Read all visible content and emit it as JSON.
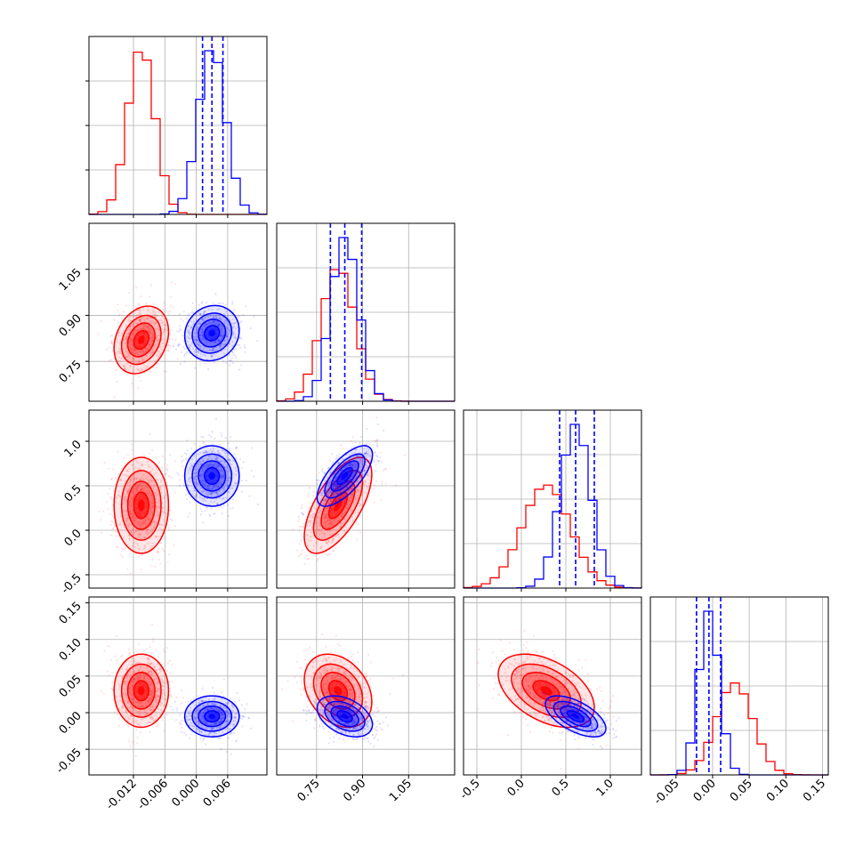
{
  "chart_data": {
    "type": "corner",
    "grid": true,
    "colors": {
      "blue": "#0000ff",
      "red": "#ff0000",
      "dashed_quantiles": "#0000ff"
    },
    "series": [
      {
        "color": "#ff0000",
        "mean": [
          -0.0105,
          0.82,
          0.28,
          0.03
        ],
        "sd": [
          0.0026,
          0.055,
          0.27,
          0.025
        ],
        "corr": [
          [
            0,
            1,
            0.25
          ],
          [
            1,
            2,
            0.65
          ],
          [
            0,
            2,
            0.0
          ],
          [
            1,
            3,
            -0.3
          ],
          [
            2,
            3,
            -0.45
          ]
        ]
      },
      {
        "color": "#0000ff",
        "mean": [
          0.003,
          0.842,
          0.61,
          -0.005
        ],
        "sd": [
          0.0026,
          0.045,
          0.17,
          0.014
        ],
        "corr": [
          [
            0,
            1,
            0.1
          ],
          [
            1,
            2,
            0.7
          ],
          [
            0,
            2,
            0.0
          ],
          [
            1,
            3,
            -0.4
          ],
          [
            2,
            3,
            -0.6
          ]
        ]
      }
    ],
    "quantiles": [
      [
        0.0012,
        0.003,
        0.0051
      ],
      [
        0.795,
        0.842,
        0.897
      ],
      [
        0.43,
        0.61,
        0.82
      ],
      [
        -0.022,
        -0.005,
        0.011
      ]
    ],
    "params": [
      {
        "range": [
          -0.0205,
          0.0135
        ],
        "ticks": [
          "-0.012",
          "-0.006",
          "0.000",
          "0.006"
        ],
        "tick_values": [
          -0.012,
          -0.006,
          0.0,
          0.006
        ]
      },
      {
        "range": [
          0.62,
          1.2
        ],
        "ticks": [
          "0.75",
          "0.90",
          "1.05"
        ],
        "tick_values": [
          0.75,
          0.9,
          1.05
        ]
      },
      {
        "range": [
          -0.65,
          1.35
        ],
        "ticks": [
          "-0.5",
          "0.0",
          "0.5",
          "1.0"
        ],
        "tick_values": [
          -0.5,
          0.0,
          0.5,
          1.0
        ]
      },
      {
        "range": [
          -0.085,
          0.158
        ],
        "ticks": [
          "-0.05",
          "0.00",
          "0.05",
          "0.10",
          "0.15"
        ],
        "tick_values": [
          -0.05,
          0.0,
          0.05,
          0.1,
          0.15
        ]
      }
    ]
  }
}
